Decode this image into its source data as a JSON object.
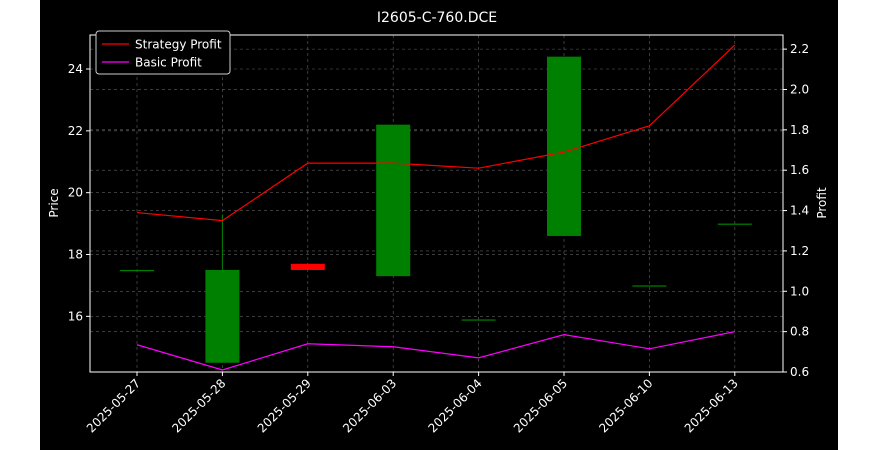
{
  "chart_data": {
    "type": "candlestick",
    "title": "I2605-C-760.DCE",
    "categories": [
      "2025-05-27",
      "2025-05-28",
      "2025-05-29",
      "2025-06-03",
      "2025-06-04",
      "2025-06-05",
      "2025-06-10",
      "2025-06-13"
    ],
    "candles": [
      {
        "open": 17.5,
        "close": 17.5,
        "high": 17.5,
        "low": 17.5
      },
      {
        "open": 14.5,
        "close": 17.5,
        "high": 19.3,
        "low": 14.5
      },
      {
        "open": 17.7,
        "close": 17.5,
        "high": 17.7,
        "low": 17.5
      },
      {
        "open": 17.3,
        "close": 22.2,
        "high": 22.2,
        "low": 17.3
      },
      {
        "open": 15.9,
        "close": 15.9,
        "high": 15.9,
        "low": 15.9
      },
      {
        "open": 18.6,
        "close": 24.4,
        "high": 24.4,
        "low": 18.6
      },
      {
        "open": 17.0,
        "close": 17.0,
        "high": 17.0,
        "low": 17.0
      },
      {
        "open": 19.0,
        "close": 19.0,
        "high": 19.0,
        "low": 19.0
      }
    ],
    "series": [
      {
        "name": "Strategy Profit",
        "axis": "right",
        "color": "#ff0000",
        "values": [
          1.39,
          1.35,
          1.635,
          1.635,
          1.61,
          1.69,
          1.82,
          2.22
        ]
      },
      {
        "name": "Basic Profit",
        "axis": "right",
        "color": "#ff00ff",
        "values": [
          0.735,
          0.61,
          0.74,
          0.725,
          0.67,
          0.785,
          0.715,
          0.8
        ]
      }
    ],
    "ylabel": "Price",
    "y2label": "Profit",
    "ylim": [
      14.2,
      25.1
    ],
    "y2lim": [
      0.6,
      2.27
    ],
    "yticks": [
      16,
      18,
      20,
      22,
      24
    ],
    "y2ticks": [
      0.6,
      0.8,
      1.0,
      1.2,
      1.4,
      1.6,
      1.8,
      2.0,
      2.2
    ],
    "up_color": "#008000",
    "down_color": "#ff0000",
    "grid": true,
    "legend": "upper-left"
  }
}
